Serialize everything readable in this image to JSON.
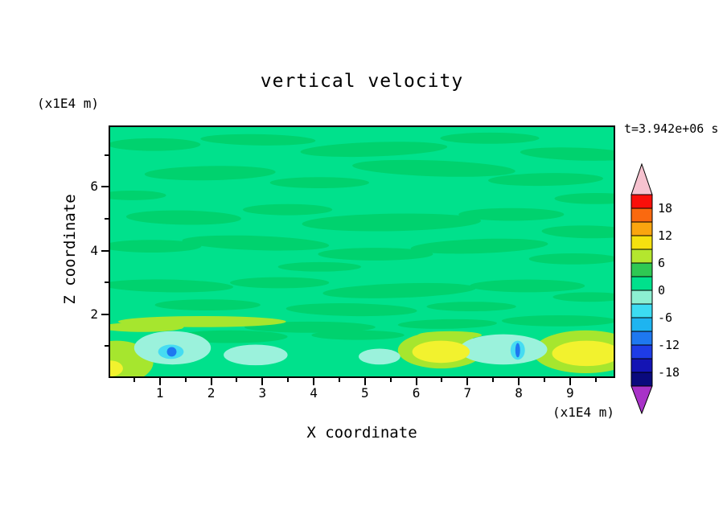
{
  "chart_data": {
    "type": "heatmap",
    "title": "vertical velocity",
    "time_label": "t=3.942e+06 s",
    "xlabel": "X coordinate",
    "x_units": "(x1E4 m)",
    "ylabel": "Z coordinate",
    "y_units": "(x1E4 m)",
    "x_axis": {
      "min": 0,
      "max": 9.88,
      "tick_values": [
        1,
        2,
        3,
        4,
        5,
        6,
        7,
        8,
        9
      ],
      "tick_labels": [
        "1",
        "2",
        "3",
        "4",
        "5",
        "6",
        "7",
        "8",
        "9"
      ],
      "minor_step": 0.5
    },
    "y_axis": {
      "min": 0,
      "max": 7.93,
      "tick_values": [
        2,
        4,
        6
      ],
      "tick_labels": [
        "2",
        "4",
        "6"
      ],
      "minor_values": [
        1,
        3,
        5,
        7
      ]
    },
    "colorbar": {
      "label_values": [
        18,
        12,
        6,
        0,
        -6,
        -12,
        -18
      ],
      "labels": [
        "18",
        "12",
        "6",
        "0",
        "-6",
        "-12",
        "-18"
      ],
      "level_min": -21,
      "level_max": 21,
      "level_step": 3,
      "segment_colors_top_to_bottom": [
        "#FA0F0A",
        "#FA690F",
        "#FAA50F",
        "#F5E10F",
        "#B4E62E",
        "#2EC853",
        "#00E18C",
        "#8CF0D2",
        "#3CDCF2",
        "#1EB4F0",
        "#1E78F0",
        "#1E3CE6",
        "#1414B4",
        "#0A0A7D"
      ],
      "arrow_top_color": "#F6C2CF",
      "arrow_bottom_color": "#A832C8"
    },
    "field": {
      "base_color": "#00E18C",
      "palette": {
        "g2": "#00D26E",
        "yg": "#A6E62E",
        "y": "#F2F22E",
        "pc": "#9BF2DC",
        "cy": "#46DCF2",
        "bl": "#1E78F0"
      },
      "blobs": [
        [
          55,
          22,
          58,
          8,
          "g2",
          0
        ],
        [
          185,
          16,
          72,
          7,
          "g2",
          1
        ],
        [
          330,
          28,
          92,
          9,
          "g2",
          -2
        ],
        [
          475,
          14,
          62,
          7,
          "g2",
          0
        ],
        [
          585,
          34,
          72,
          8,
          "g2",
          2
        ],
        [
          125,
          58,
          82,
          9,
          "g2",
          -1
        ],
        [
          262,
          70,
          62,
          7,
          "g2",
          0
        ],
        [
          405,
          52,
          102,
          10,
          "g2",
          2
        ],
        [
          545,
          66,
          72,
          8,
          "g2",
          -1
        ],
        [
          28,
          86,
          42,
          6,
          "g2",
          0
        ],
        [
          608,
          90,
          52,
          7,
          "g2",
          0
        ],
        [
          92,
          114,
          72,
          9,
          "g2",
          1
        ],
        [
          222,
          104,
          56,
          7,
          "g2",
          0
        ],
        [
          352,
          120,
          112,
          11,
          "g2",
          -1
        ],
        [
          502,
          110,
          66,
          8,
          "g2",
          0
        ],
        [
          598,
          132,
          58,
          8,
          "g2",
          1
        ],
        [
          52,
          150,
          62,
          8,
          "g2",
          0
        ],
        [
          182,
          146,
          92,
          9,
          "g2",
          2
        ],
        [
          332,
          160,
          72,
          8,
          "g2",
          0
        ],
        [
          462,
          150,
          86,
          9,
          "g2",
          -2
        ],
        [
          580,
          166,
          56,
          7,
          "g2",
          0
        ],
        [
          262,
          176,
          52,
          6,
          "g2",
          0
        ],
        [
          72,
          200,
          82,
          8,
          "g2",
          1
        ],
        [
          212,
          196,
          62,
          7,
          "g2",
          0
        ],
        [
          362,
          206,
          96,
          9,
          "g2",
          -2
        ],
        [
          522,
          200,
          72,
          8,
          "g2",
          0
        ],
        [
          122,
          224,
          66,
          7,
          "g2",
          0
        ],
        [
          302,
          230,
          82,
          8,
          "g2",
          1
        ],
        [
          452,
          226,
          56,
          6,
          "g2",
          0
        ],
        [
          600,
          214,
          46,
          6,
          "g2",
          0
        ],
        [
          250,
          252,
          82,
          7,
          "g2",
          0
        ],
        [
          422,
          248,
          62,
          6,
          "g2",
          -1
        ],
        [
          562,
          244,
          72,
          7,
          "g2",
          0
        ],
        [
          150,
          264,
          72,
          8,
          "g2",
          0
        ],
        [
          310,
          262,
          58,
          6,
          "g2",
          0
        ],
        [
          115,
          245,
          105,
          7,
          "yg",
          0
        ],
        [
          40,
          252,
          52,
          6,
          "yg",
          0
        ],
        [
          425,
          262,
          40,
          5,
          "yg",
          0
        ],
        [
          8,
          296,
          46,
          27,
          "yg",
          0
        ],
        [
          414,
          281,
          54,
          23,
          "yg",
          0
        ],
        [
          595,
          283,
          66,
          27,
          "yg",
          0
        ],
        [
          78,
          278,
          48,
          21,
          "pc",
          0
        ],
        [
          182,
          287,
          40,
          13,
          "pc",
          0
        ],
        [
          337,
          289,
          26,
          10,
          "pc",
          0
        ],
        [
          492,
          280,
          55,
          19,
          "pc",
          0
        ],
        [
          0,
          304,
          16,
          10,
          "y",
          0
        ],
        [
          414,
          283,
          36,
          14,
          "y",
          0
        ],
        [
          596,
          285,
          43,
          16,
          "y",
          0
        ],
        [
          76,
          283,
          16,
          9,
          "cy",
          0
        ],
        [
          510,
          281,
          9,
          12,
          "cy",
          0
        ],
        [
          77,
          283,
          6,
          6,
          "bl",
          0
        ],
        [
          510,
          281,
          3,
          9,
          "bl",
          0
        ]
      ]
    }
  }
}
